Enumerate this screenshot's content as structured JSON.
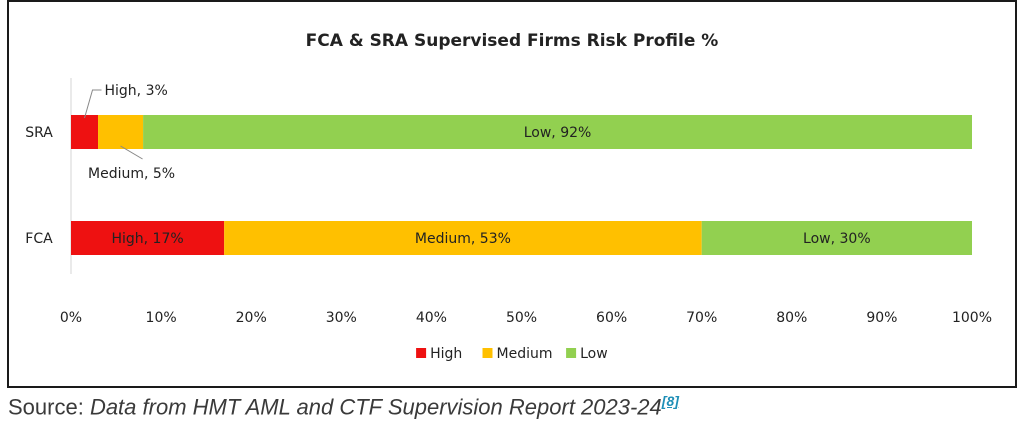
{
  "chart_data": {
    "type": "bar",
    "orientation": "horizontal",
    "stacked": true,
    "title": "FCA & SRA Supervised Firms Risk Profile %",
    "categories": [
      "SRA",
      "FCA"
    ],
    "series": [
      {
        "name": "High",
        "values": [
          3,
          17
        ],
        "labels": [
          "High, 3%",
          "High, 17%"
        ],
        "color": "#ee1111"
      },
      {
        "name": "Medium",
        "values": [
          5,
          53
        ],
        "labels": [
          "Medium, 5%",
          "Medium, 53%"
        ],
        "color": "#ffc000"
      },
      {
        "name": "Low",
        "values": [
          92,
          30
        ],
        "labels": [
          "Low, 92%",
          "Low, 30%"
        ],
        "color": "#92d050"
      }
    ],
    "xlim": [
      0,
      100
    ],
    "x_ticks": [
      "0%",
      "10%",
      "20%",
      "30%",
      "40%",
      "50%",
      "60%",
      "70%",
      "80%",
      "90%",
      "100%"
    ],
    "grid": false,
    "legend_position": "bottom"
  },
  "caption": {
    "prefix": "Source: ",
    "text": "Data from HMT AML and CTF Supervision Report 2023-24",
    "ref": "[8]"
  }
}
